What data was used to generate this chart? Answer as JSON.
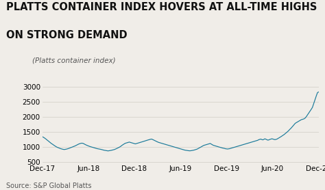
{
  "title_line1": "PLATTS CONTAINER INDEX HOVERS AT ALL-TIME HIGHS",
  "title_line2": "ON STRONG DEMAND",
  "subtitle": "(Platts container index)",
  "source": "Source: S&P Global Platts",
  "line_color": "#1a7a9a",
  "background_color": "#f0ede8",
  "yticks": [
    500,
    1000,
    1500,
    2000,
    2500,
    3000
  ],
  "ylim": [
    450,
    3100
  ],
  "xtick_labels": [
    "Dec-17",
    "Jun-18",
    "Dec-18",
    "Jun-19",
    "Dec-19",
    "Jun-20",
    "Dec-20"
  ],
  "title_fontsize": 10.5,
  "subtitle_fontsize": 7.5,
  "tick_fontsize": 7.5,
  "source_fontsize": 7,
  "series": [
    1340,
    1320,
    1300,
    1275,
    1250,
    1220,
    1195,
    1165,
    1140,
    1110,
    1090,
    1065,
    1042,
    1020,
    1000,
    982,
    968,
    955,
    942,
    932,
    922,
    915,
    912,
    918,
    925,
    935,
    945,
    958,
    970,
    984,
    998,
    1010,
    1025,
    1040,
    1058,
    1075,
    1092,
    1105,
    1115,
    1122,
    1118,
    1105,
    1085,
    1068,
    1052,
    1038,
    1025,
    1012,
    1002,
    992,
    982,
    972,
    962,
    952,
    942,
    936,
    928,
    922,
    916,
    908,
    898,
    888,
    882,
    876,
    870,
    865,
    870,
    876,
    882,
    890,
    898,
    908,
    920,
    935,
    952,
    968,
    985,
    1005,
    1028,
    1055,
    1078,
    1098,
    1118,
    1128,
    1138,
    1148,
    1158,
    1148,
    1138,
    1128,
    1118,
    1108,
    1098,
    1108,
    1118,
    1128,
    1138,
    1148,
    1158,
    1168,
    1178,
    1190,
    1202,
    1212,
    1222,
    1232,
    1242,
    1252,
    1258,
    1245,
    1228,
    1210,
    1192,
    1175,
    1162,
    1148,
    1138,
    1128,
    1118,
    1108,
    1098,
    1088,
    1078,
    1068,
    1058,
    1048,
    1038,
    1028,
    1018,
    1008,
    998,
    988,
    978,
    968,
    958,
    948,
    938,
    928,
    918,
    908,
    898,
    890,
    885,
    880,
    875,
    870,
    868,
    872,
    878,
    884,
    892,
    902,
    912,
    924,
    942,
    960,
    978,
    998,
    1018,
    1038,
    1052,
    1062,
    1072,
    1082,
    1092,
    1102,
    1112,
    1092,
    1072,
    1052,
    1042,
    1032,
    1022,
    1012,
    1002,
    992,
    982,
    972,
    962,
    955,
    948,
    938,
    932,
    928,
    932,
    938,
    948,
    958,
    968,
    978,
    988,
    998,
    1008,
    1018,
    1028,
    1038,
    1048,
    1058,
    1068,
    1078,
    1088,
    1098,
    1108,
    1118,
    1128,
    1138,
    1148,
    1158,
    1168,
    1178,
    1188,
    1198,
    1208,
    1218,
    1238,
    1248,
    1258,
    1242,
    1232,
    1248,
    1268,
    1252,
    1235,
    1222,
    1232,
    1248,
    1258,
    1268,
    1258,
    1248,
    1238,
    1248,
    1258,
    1278,
    1298,
    1318,
    1340,
    1362,
    1385,
    1408,
    1435,
    1462,
    1492,
    1522,
    1558,
    1592,
    1625,
    1662,
    1702,
    1742,
    1782,
    1802,
    1822,
    1842,
    1862,
    1882,
    1902,
    1912,
    1922,
    1935,
    1962,
    2005,
    2055,
    2105,
    2155,
    2205,
    2255,
    2310,
    2410,
    2510,
    2610,
    2710,
    2800,
    2820
  ]
}
